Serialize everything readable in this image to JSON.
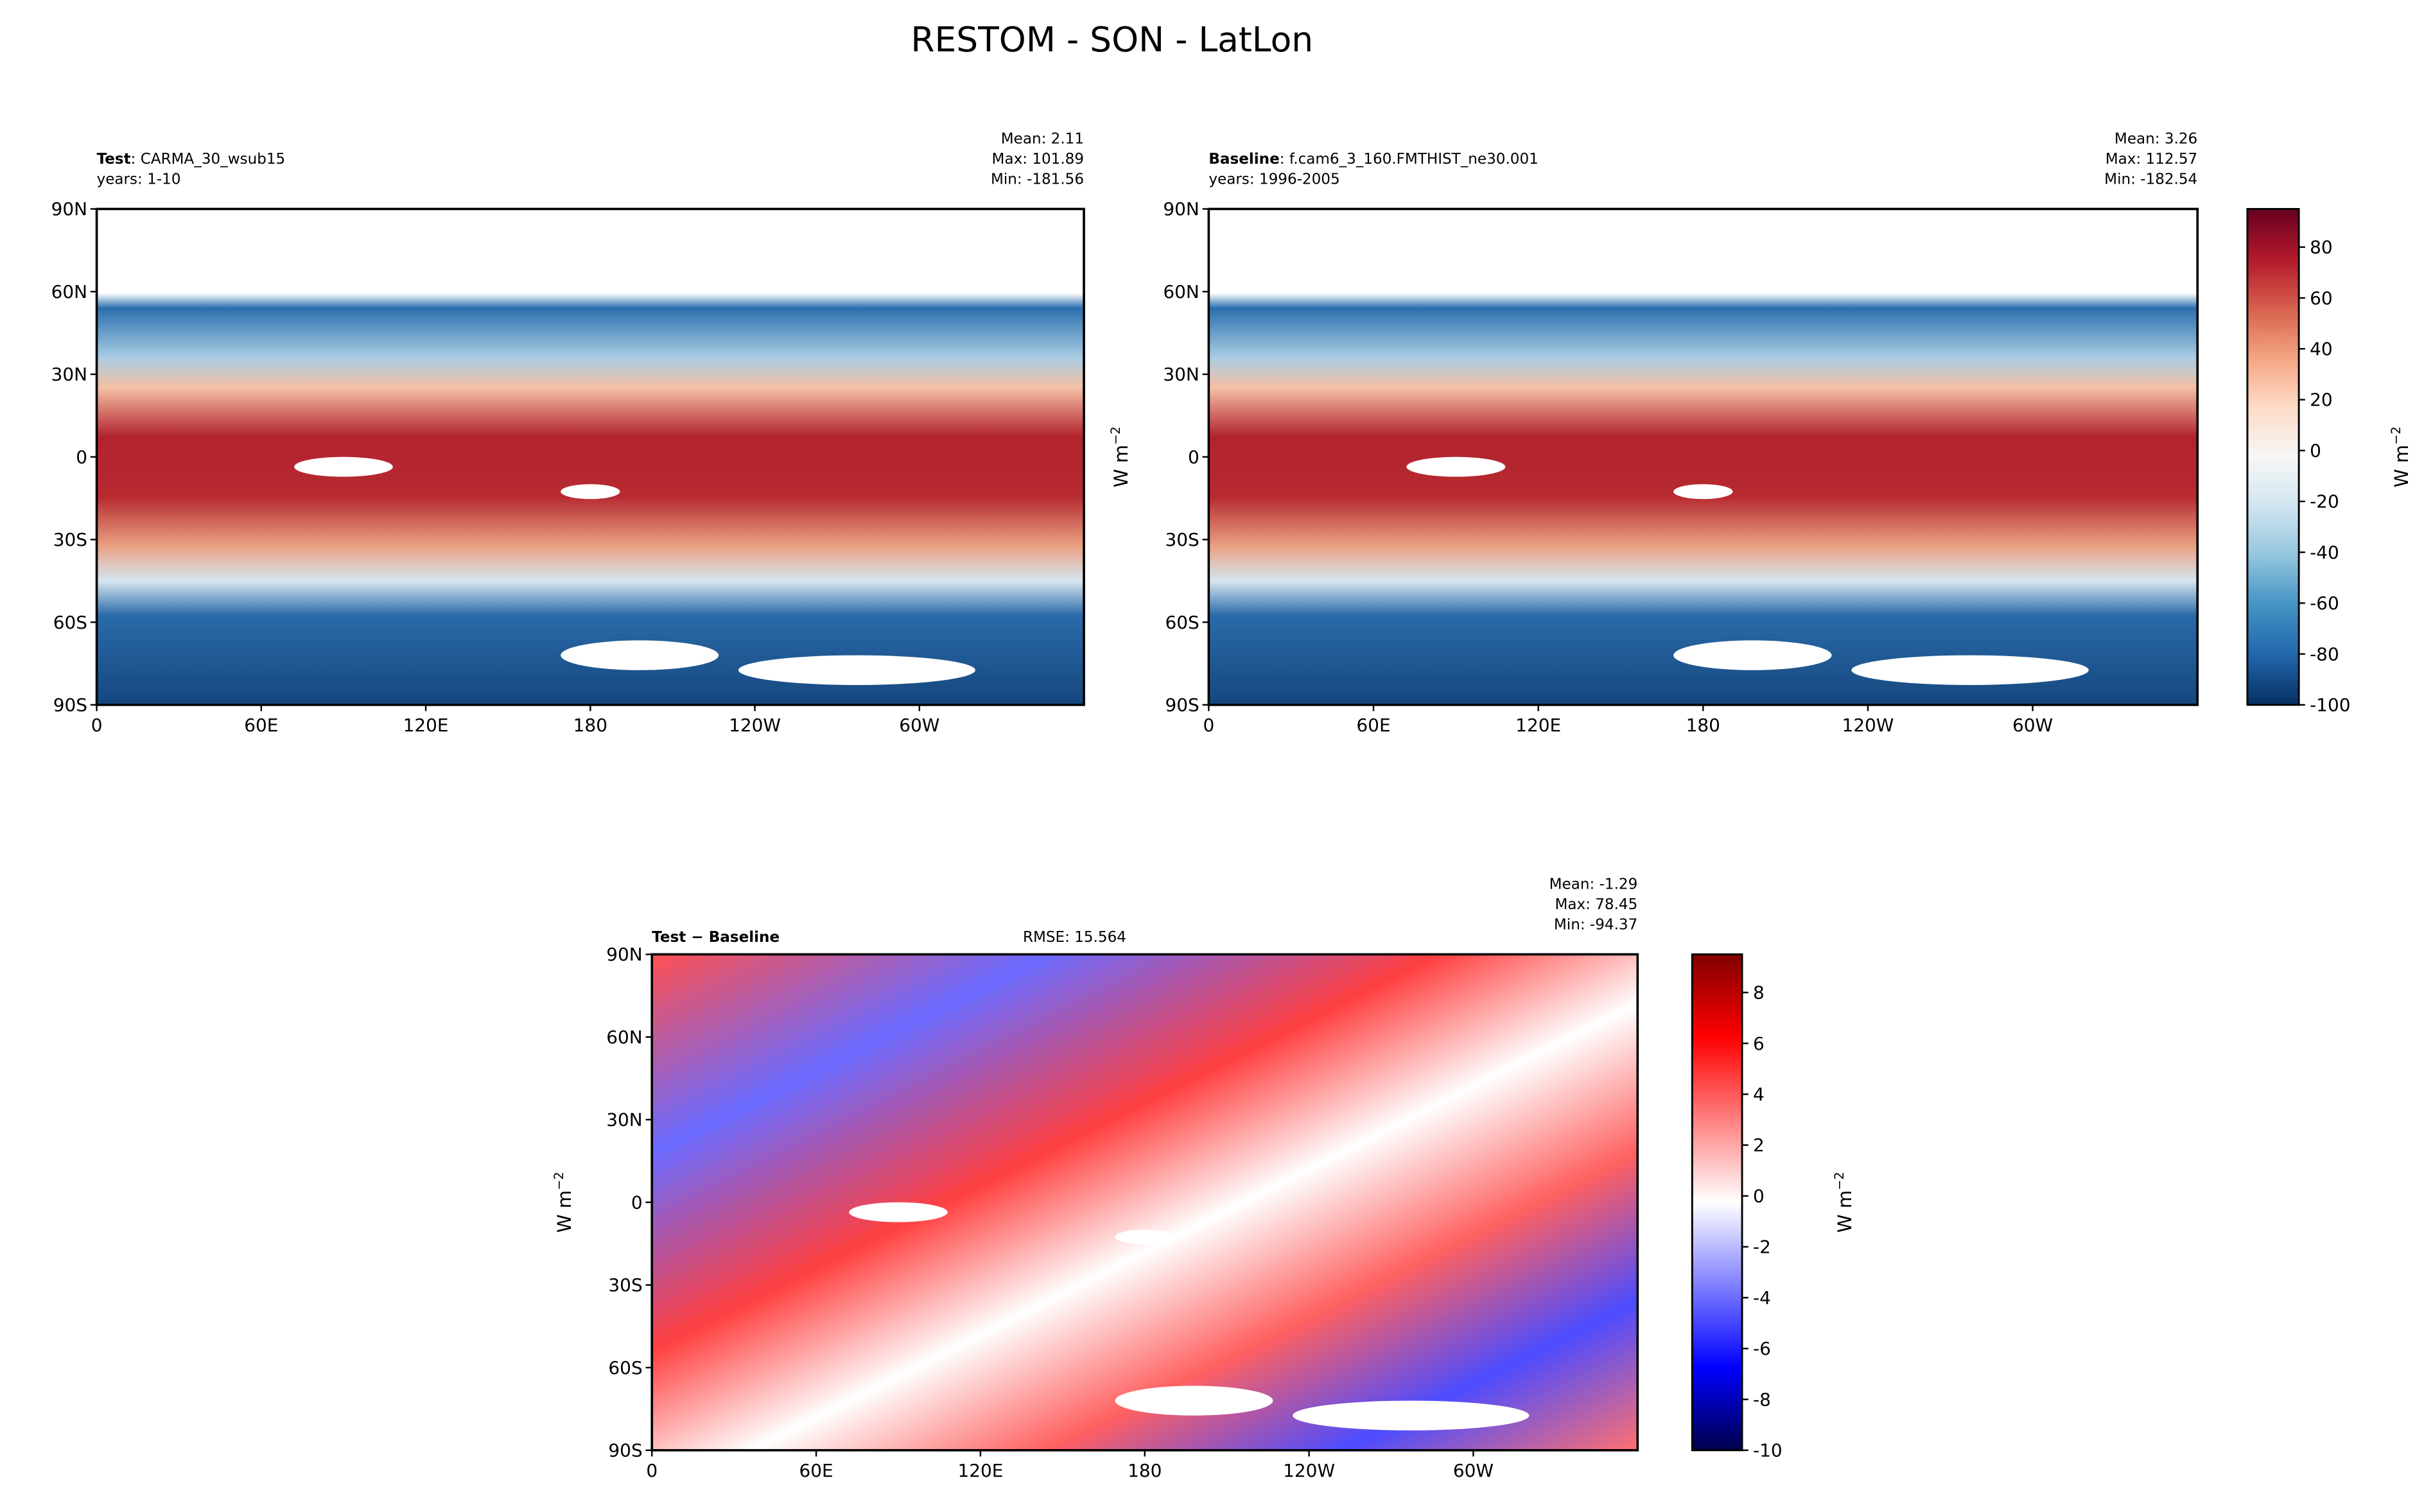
{
  "chart_data": [
    {
      "type": "map",
      "label": "Test",
      "subtitle": ": CARMA_30_wsub15",
      "years": "years: 1-10",
      "stats": [
        "Mean:  2.11",
        "Max: 101.89",
        "Min: -181.56"
      ],
      "xlim": [
        0,
        360
      ],
      "xticks": [
        0,
        {
          "value": 60,
          "label": "60E"
        },
        {
          "value": 120,
          "label": "120E"
        },
        180,
        {
          "value": 240,
          "label": "120W"
        },
        {
          "value": 300,
          "label": "60W"
        }
      ],
      "ylim": [
        -90,
        90
      ],
      "yticks": [
        {
          "value": -90,
          "label": "90S"
        },
        {
          "value": -60,
          "label": "60S"
        },
        {
          "value": -30,
          "label": "30S"
        },
        0,
        {
          "value": 30,
          "label": "30N"
        },
        {
          "value": 60,
          "label": "60N"
        },
        {
          "value": 90,
          "label": "90N"
        }
      ]
    },
    {
      "type": "map",
      "label": "Baseline",
      "subtitle": ": f.cam6_3_160.FMTHIST_ne30.001",
      "years": "years: 1996-2005",
      "stats": [
        "Mean:  3.26",
        "Max: 112.57",
        "Min: -182.54"
      ],
      "ylabel": "W m",
      "ylabel_sup": "−2",
      "xlim": [
        0,
        360
      ],
      "xticks": [
        0,
        {
          "value": 60,
          "label": "60E"
        },
        {
          "value": 120,
          "label": "120E"
        },
        180,
        {
          "value": 240,
          "label": "120W"
        },
        {
          "value": 300,
          "label": "60W"
        }
      ],
      "ylim": [
        -90,
        90
      ],
      "yticks": [
        {
          "value": -90,
          "label": "90S"
        },
        {
          "value": -60,
          "label": "60S"
        },
        {
          "value": -30,
          "label": "30S"
        },
        0,
        {
          "value": 30,
          "label": "30N"
        },
        {
          "value": 60,
          "label": "60N"
        },
        {
          "value": 90,
          "label": "90N"
        }
      ]
    },
    {
      "type": "colorbar",
      "ylabel": "W m",
      "ylabel_sup": "−2",
      "ylim": [
        -100,
        95
      ],
      "yticks": [
        -100,
        -80,
        -60,
        -40,
        -20,
        0,
        20,
        40,
        60,
        80
      ],
      "colors": [
        "#053061",
        "#2166ac",
        "#4393c3",
        "#92c5de",
        "#d1e5f0",
        "#f7f7f7",
        "#fddbc7",
        "#f4a582",
        "#d6604d",
        "#b2182b",
        "#67001f"
      ]
    },
    {
      "type": "map",
      "label": "Test − Baseline",
      "center": "RMSE: 15.564",
      "stats": [
        "Mean: -1.29",
        "Max: 78.45",
        "Min: -94.37"
      ],
      "ylabel": "W m",
      "ylabel_sup": "−2",
      "xlim": [
        0,
        360
      ],
      "xticks": [
        0,
        {
          "value": 60,
          "label": "60E"
        },
        {
          "value": 120,
          "label": "120E"
        },
        180,
        {
          "value": 240,
          "label": "120W"
        },
        {
          "value": 300,
          "label": "60W"
        }
      ],
      "ylim": [
        -90,
        90
      ],
      "yticks": [
        {
          "value": -90,
          "label": "90S"
        },
        {
          "value": -60,
          "label": "60S"
        },
        {
          "value": -30,
          "label": "30S"
        },
        0,
        {
          "value": 30,
          "label": "30N"
        },
        {
          "value": 60,
          "label": "60N"
        },
        {
          "value": 90,
          "label": "90N"
        }
      ]
    },
    {
      "type": "colorbar",
      "ylabel": "W m",
      "ylabel_sup": "−2",
      "ylim": [
        -10,
        9.5
      ],
      "yticks": [
        -10,
        -8,
        -6,
        -4,
        -2,
        0,
        2,
        4,
        6,
        8
      ],
      "colors": [
        "#00004c",
        "#0000ff",
        "#8080ff",
        "#ffffff",
        "#ff8080",
        "#ff0000",
        "#800000"
      ]
    }
  ],
  "title": "RESTOM - SON - LatLon"
}
